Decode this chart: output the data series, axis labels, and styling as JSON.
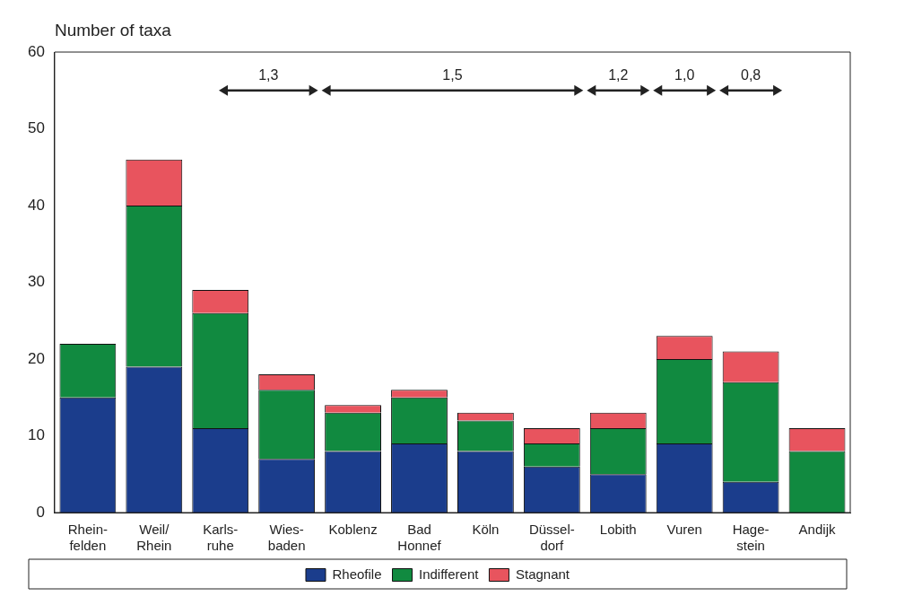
{
  "chart_data": {
    "type": "bar",
    "stacked": true,
    "ylabel": "Number of taxa",
    "categories": [
      "Rhein-\nfelden",
      "Weil/\nRhein",
      "Karls-\nruhe",
      "Wies-\nbaden",
      "Koblenz",
      "Bad\nHonnef",
      "Köln",
      "Düssel-\ndorf",
      "Lobith",
      "Vuren",
      "Hage-\nstein",
      "Andijk"
    ],
    "series": [
      {
        "name": "Rheofile",
        "color": "#1b3d8c",
        "values": [
          15,
          19,
          11,
          7,
          8,
          9,
          8,
          6,
          5,
          9,
          4,
          0
        ]
      },
      {
        "name": "Indifferent",
        "color": "#118a40",
        "values": [
          7,
          21,
          15,
          9,
          5,
          6,
          4,
          3,
          6,
          11,
          13,
          8
        ]
      },
      {
        "name": "Stagnant",
        "color": "#e8545e",
        "values": [
          0,
          6,
          3,
          2,
          1,
          1,
          1,
          2,
          2,
          3,
          4,
          3
        ]
      }
    ],
    "ylim": [
      0,
      60
    ],
    "yticks": [
      0,
      10,
      20,
      30,
      40,
      50,
      60
    ],
    "grid": false,
    "legend": "bottom",
    "annotations": [
      "1,3",
      "1,5",
      "1,2",
      "1,0",
      "0,8"
    ]
  }
}
